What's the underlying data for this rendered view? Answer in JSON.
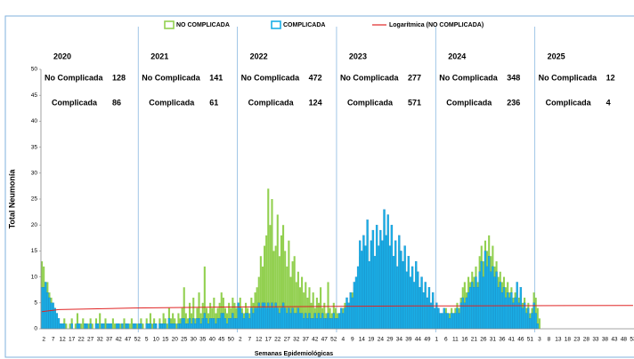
{
  "chart_data": {
    "type": "bar",
    "axis_label_y": "Total Neumonía",
    "axis_label_x": "Semanas Epidemiológicas",
    "ylim": [
      0,
      50
    ],
    "yticks": [
      0,
      5,
      10,
      15,
      20,
      25,
      30,
      35,
      40,
      45,
      50
    ],
    "grid": false,
    "legend_position": "top",
    "row_labels": {
      "no_complicada": "No Complicada",
      "complicada": "Complicada"
    },
    "years": [
      {
        "year": "2020",
        "no_complicada": 128,
        "complicada": 86
      },
      {
        "year": "2021",
        "no_complicada": 141,
        "complicada": 61
      },
      {
        "year": "2022",
        "no_complicada": 472,
        "complicada": 124
      },
      {
        "year": "2023",
        "no_complicada": 277,
        "complicada": 571
      },
      {
        "year": "2024",
        "no_complicada": 348,
        "complicada": 236
      },
      {
        "year": "2025",
        "no_complicada": 12,
        "complicada": 4
      }
    ],
    "categories": [
      null,
      "2",
      null,
      null,
      null,
      null,
      "7",
      null,
      null,
      null,
      null,
      "12",
      null,
      null,
      null,
      null,
      "17",
      null,
      null,
      null,
      null,
      "22",
      null,
      null,
      null,
      null,
      "27",
      null,
      null,
      null,
      null,
      "32",
      null,
      null,
      null,
      null,
      "37",
      null,
      null,
      null,
      null,
      "42",
      null,
      null,
      null,
      null,
      "47",
      null,
      null,
      null,
      null,
      "52",
      null,
      null,
      null,
      null,
      "5",
      null,
      null,
      null,
      null,
      "10",
      null,
      null,
      null,
      null,
      "15",
      null,
      null,
      null,
      null,
      "20",
      null,
      null,
      null,
      null,
      "25",
      null,
      null,
      null,
      null,
      "30",
      null,
      null,
      null,
      null,
      "35",
      null,
      null,
      null,
      null,
      "40",
      null,
      null,
      null,
      null,
      "45",
      null,
      null,
      null,
      null,
      "50",
      null,
      null,
      null,
      null,
      "2",
      null,
      null,
      null,
      null,
      "7",
      null,
      null,
      null,
      null,
      "12",
      null,
      null,
      null,
      null,
      "17",
      null,
      null,
      null,
      null,
      "22",
      null,
      null,
      null,
      null,
      "27",
      null,
      null,
      null,
      null,
      "32",
      null,
      null,
      null,
      null,
      "37",
      null,
      null,
      null,
      null,
      "42",
      null,
      null,
      null,
      null,
      "47",
      null,
      null,
      null,
      null,
      "52",
      null,
      null,
      null,
      null,
      "4",
      null,
      null,
      null,
      null,
      "9",
      null,
      null,
      null,
      null,
      "14",
      null,
      null,
      null,
      null,
      "19",
      null,
      null,
      null,
      null,
      "24",
      null,
      null,
      null,
      null,
      "29",
      null,
      null,
      null,
      null,
      "34",
      null,
      null,
      null,
      null,
      "39",
      null,
      null,
      null,
      null,
      "44",
      null,
      null,
      null,
      null,
      "49",
      null,
      null,
      null,
      null,
      "1",
      null,
      null,
      null,
      null,
      "6",
      null,
      null,
      null,
      null,
      "11",
      null,
      null,
      null,
      null,
      "16",
      null,
      null,
      null,
      null,
      "21",
      null,
      null,
      null,
      null,
      "26",
      null,
      null,
      null,
      null,
      "31",
      null,
      null,
      null,
      null,
      "36",
      null,
      null,
      null,
      null,
      "41",
      null,
      null,
      null,
      null,
      "46",
      null,
      null,
      null,
      null,
      "51",
      null,
      null,
      null,
      null,
      "3",
      null,
      null,
      null,
      null,
      "8",
      null,
      null,
      null,
      null,
      "13",
      null,
      null,
      null,
      null,
      "18",
      null,
      null,
      null,
      null,
      "23",
      null,
      null,
      null,
      null,
      "28",
      null,
      null,
      null,
      null,
      "33",
      null,
      null,
      null,
      null,
      "38",
      null,
      null,
      null,
      null,
      "43",
      null,
      null,
      null,
      null,
      "48",
      null,
      null,
      null,
      null,
      "53"
    ],
    "series": [
      {
        "name": "NO COMPLICADA",
        "color": "#92d050",
        "values": [
          13,
          12,
          8,
          9,
          7,
          6,
          5,
          4,
          3,
          2,
          1,
          0,
          2,
          1,
          0,
          1,
          2,
          0,
          1,
          3,
          0,
          1,
          2,
          1,
          0,
          1,
          2,
          1,
          0,
          2,
          1,
          3,
          0,
          1,
          2,
          1,
          0,
          1,
          2,
          1,
          0,
          1,
          1,
          0,
          2,
          1,
          0,
          1,
          2,
          1,
          0,
          1,
          1,
          2,
          1,
          0,
          2,
          1,
          3,
          1,
          2,
          1,
          0,
          2,
          1,
          3,
          2,
          1,
          4,
          2,
          3,
          2,
          1,
          3,
          2,
          4,
          8,
          3,
          2,
          5,
          3,
          6,
          2,
          4,
          7,
          3,
          5,
          12,
          4,
          3,
          5,
          4,
          6,
          3,
          4,
          5,
          7,
          6,
          4,
          3,
          5,
          4,
          6,
          5,
          4,
          5,
          6,
          4,
          3,
          5,
          4,
          3,
          6,
          5,
          7,
          8,
          10,
          14,
          12,
          16,
          18,
          27,
          20,
          25,
          15,
          16,
          22,
          14,
          18,
          20,
          15,
          12,
          17,
          10,
          13,
          14,
          9,
          11,
          8,
          10,
          7,
          9,
          6,
          8,
          5,
          7,
          4,
          6,
          5,
          8,
          4,
          5,
          3,
          9,
          4,
          3,
          5,
          4,
          3,
          2,
          3,
          4,
          5,
          5,
          4,
          6,
          7,
          8,
          9,
          11,
          14,
          13,
          16,
          14,
          18,
          12,
          15,
          16,
          12,
          17,
          14,
          17,
          15,
          20,
          16,
          19,
          14,
          17,
          13,
          15,
          11,
          16,
          14,
          12,
          14,
          10,
          12,
          9,
          11,
          8,
          12,
          10,
          7,
          9,
          6,
          8,
          5,
          7,
          4,
          6,
          3,
          3,
          4,
          2,
          3,
          3,
          4,
          2,
          3,
          4,
          3,
          4,
          5,
          4,
          6,
          8,
          9,
          7,
          10,
          9,
          11,
          10,
          12,
          9,
          14,
          16,
          13,
          17,
          15,
          18,
          14,
          16,
          12,
          13,
          10,
          11,
          9,
          10,
          8,
          9,
          7,
          8,
          6,
          7,
          5,
          6,
          7,
          5,
          6,
          4,
          5,
          3,
          4,
          7,
          6,
          4,
          2,
          null,
          null,
          null,
          null,
          null,
          null,
          null,
          null,
          null,
          null,
          null,
          null,
          null,
          null,
          null,
          null,
          null,
          null,
          null,
          null,
          null,
          null,
          null,
          null,
          null,
          null,
          null,
          null,
          null,
          null,
          null,
          null,
          null,
          null,
          null,
          null,
          null,
          null,
          null,
          null,
          null,
          null,
          null,
          null,
          null,
          null,
          null,
          null,
          null,
          null
        ]
      },
      {
        "name": "COMPLICADA",
        "color": "#1aaee6",
        "values": [
          8,
          8,
          9,
          7,
          6,
          5,
          5,
          4,
          3,
          2,
          1,
          1,
          1,
          0,
          0,
          0,
          1,
          0,
          0,
          1,
          1,
          0,
          0,
          1,
          1,
          0,
          1,
          0,
          0,
          1,
          1,
          0,
          1,
          1,
          0,
          1,
          1,
          1,
          0,
          0,
          1,
          1,
          0,
          1,
          0,
          1,
          1,
          0,
          0,
          1,
          1,
          0,
          1,
          1,
          0,
          0,
          1,
          1,
          1,
          0,
          1,
          1,
          0,
          1,
          1,
          1,
          1,
          0,
          2,
          1,
          1,
          1,
          0,
          1,
          1,
          2,
          2,
          1,
          1,
          2,
          1,
          2,
          1,
          2,
          2,
          1,
          2,
          3,
          2,
          1,
          2,
          2,
          2,
          1,
          2,
          2,
          3,
          3,
          2,
          1,
          2,
          2,
          3,
          2,
          2,
          5,
          4,
          3,
          2,
          3,
          3,
          2,
          4,
          3,
          4,
          4,
          5,
          4,
          5,
          5,
          4,
          5,
          4,
          5,
          4,
          5,
          4,
          3,
          4,
          5,
          4,
          3,
          4,
          3,
          4,
          3,
          3,
          4,
          3,
          3,
          2,
          3,
          2,
          3,
          2,
          2,
          3,
          2,
          3,
          2,
          3,
          2,
          2,
          3,
          2,
          2,
          3,
          2,
          2,
          3,
          4,
          3,
          4,
          6,
          5,
          7,
          6,
          9,
          10,
          12,
          17,
          15,
          18,
          16,
          21,
          13,
          17,
          19,
          14,
          20,
          16,
          19,
          17,
          23,
          18,
          22,
          16,
          20,
          14,
          17,
          12,
          18,
          15,
          13,
          16,
          11,
          14,
          10,
          12,
          9,
          13,
          11,
          8,
          10,
          7,
          9,
          6,
          8,
          5,
          7,
          4,
          5,
          4,
          3,
          3,
          4,
          3,
          3,
          2,
          3,
          3,
          3,
          4,
          3,
          5,
          6,
          5,
          6,
          7,
          8,
          9,
          8,
          10,
          8,
          11,
          13,
          10,
          15,
          12,
          14,
          11,
          12,
          10,
          11,
          8,
          9,
          7,
          8,
          6,
          7,
          6,
          7,
          5,
          6,
          9,
          5,
          8,
          4,
          5,
          3,
          4,
          2,
          3,
          5,
          3,
          1,
          0,
          null,
          null,
          null,
          null,
          null,
          null,
          null,
          null,
          null,
          null,
          null,
          null,
          null,
          null,
          null,
          null,
          null,
          null,
          null,
          null,
          null,
          null,
          null,
          null,
          null,
          null,
          null,
          null,
          null,
          null,
          null,
          null,
          null,
          null,
          null,
          null,
          null,
          null,
          null,
          null,
          null,
          null,
          null,
          null,
          null,
          null,
          null,
          null,
          null,
          null
        ]
      }
    ],
    "trend": {
      "name": "Logarítmica (NO COMPLICADA)",
      "color": "#e02424",
      "x": [
        1,
        10,
        50,
        100,
        200,
        317
      ],
      "values": [
        3.3,
        3.7,
        4.0,
        4.2,
        4.4,
        4.5
      ]
    }
  }
}
